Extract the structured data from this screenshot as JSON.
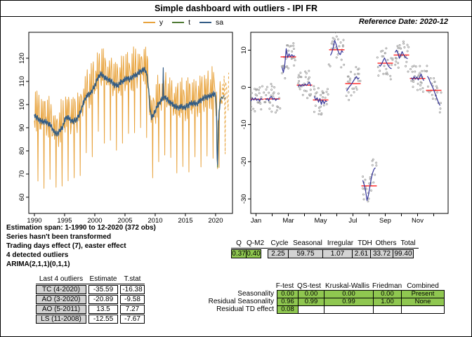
{
  "window": {
    "title": "Simple dashboard with outliers - IPI FR",
    "reference_date": "Reference Date: 2020-12"
  },
  "legend": {
    "items": [
      {
        "label": "y",
        "color": "#E8A33D"
      },
      {
        "label": "t",
        "color": "#4F7A35"
      },
      {
        "label": "sa",
        "color": "#335C85"
      }
    ]
  },
  "diagnostics": {
    "lines": [
      "Estimation span: 1-1990 to 12-2020 (372 obs)",
      "Series hasn't been transformed",
      "Trading days effect (7), easter effect",
      "4 detected outliers",
      "ARIMA(2,1,1)(0,1,1)"
    ]
  },
  "outliers_table": {
    "headers": [
      "Last 4 outliers",
      "Estimate",
      "T.stat"
    ],
    "rows": [
      [
        "TC (4-2020)",
        "-35.59",
        "-16.38"
      ],
      [
        "AO (3-2020)",
        "-20.89",
        "-9.58"
      ],
      [
        "AO (5-2011)",
        "13.5",
        "7.27"
      ],
      [
        "LS (11-2008)",
        "-12.55",
        "-7.67"
      ]
    ],
    "label_bg": "#D3D3D3"
  },
  "quality_table": {
    "q_headers": [
      "Q",
      "Q-M2"
    ],
    "q_values": [
      "0.37",
      "0.40"
    ],
    "stat_headers": [
      "Cycle",
      "Seasonal",
      "Irregular",
      "TDH",
      "Others",
      "Total"
    ],
    "stat_values": [
      "2.25",
      "59.75",
      "1.07",
      "2.61",
      "33.72",
      "99.40"
    ],
    "green": "#8FC750",
    "gray": "#D3D3D3"
  },
  "seasonality_table": {
    "headers": [
      "F-test",
      "QS-test",
      "Kruskal-Wallis",
      "Friedman",
      "Combined"
    ],
    "rows": [
      {
        "label": "Seasonality",
        "values": [
          "0.00",
          "0.00",
          "0.00",
          "0.00",
          "Present"
        ]
      },
      {
        "label": "Residual Seasonality",
        "values": [
          "0.96",
          "0.99",
          "0.99",
          "1.00",
          "None"
        ]
      },
      {
        "label": "Residual TD effect",
        "values": [
          "0.08",
          "",
          "",
          "",
          ""
        ]
      }
    ],
    "green": "#8FC750"
  },
  "chart_data": [
    {
      "type": "line",
      "title": "y / t / sa with forecasts",
      "x_ticks": [
        1990,
        1995,
        2000,
        2005,
        2010,
        2015,
        2020
      ],
      "y_ticks": [
        60,
        70,
        80,
        90,
        100,
        110,
        120
      ],
      "xlim": [
        1989.07,
        2022.8
      ],
      "ylim": [
        53,
        131.2
      ],
      "series": [
        {
          "name": "y",
          "color": "#E8A33D"
        },
        {
          "name": "t",
          "color": "#4F7A35"
        },
        {
          "name": "sa",
          "color": "#335C85"
        }
      ],
      "trend_keypoints": [
        [
          1990.0,
          95.3
        ],
        [
          1990.6,
          93.8
        ],
        [
          1991.2,
          92.6
        ],
        [
          1991.8,
          92.6
        ],
        [
          1992.3,
          91.8
        ],
        [
          1992.8,
          90.6
        ],
        [
          1993.3,
          88.0
        ],
        [
          1993.7,
          87.2
        ],
        [
          1994.2,
          88.6
        ],
        [
          1994.7,
          90.5
        ],
        [
          1995.1,
          93.8
        ],
        [
          1995.4,
          94.6
        ],
        [
          1995.9,
          93.6
        ],
        [
          1996.4,
          92.6
        ],
        [
          1996.9,
          93.4
        ],
        [
          1997.4,
          95.2
        ],
        [
          1997.9,
          99.0
        ],
        [
          1998.4,
          102.6
        ],
        [
          1998.9,
          104.2
        ],
        [
          1999.4,
          105.2
        ],
        [
          1999.9,
          107.6
        ],
        [
          2000.4,
          110.8
        ],
        [
          2000.9,
          113.2
        ],
        [
          2001.3,
          112.6
        ],
        [
          2001.8,
          111.2
        ],
        [
          2002.3,
          110.8
        ],
        [
          2002.8,
          109.8
        ],
        [
          2003.3,
          108.4
        ],
        [
          2003.8,
          108.2
        ],
        [
          2004.3,
          109.6
        ],
        [
          2004.8,
          110.2
        ],
        [
          2005.3,
          111.6
        ],
        [
          2005.8,
          110.8
        ],
        [
          2006.3,
          112.2
        ],
        [
          2006.8,
          112.6
        ],
        [
          2007.3,
          113.8
        ],
        [
          2007.8,
          114.6
        ],
        [
          2008.3,
          115.2
        ],
        [
          2008.6,
          113.4
        ],
        [
          2008.9,
          107.0
        ],
        [
          2009.1,
          99.0
        ],
        [
          2009.35,
          94.8
        ],
        [
          2009.6,
          94.6
        ],
        [
          2009.9,
          96.6
        ],
        [
          2010.3,
          99.2
        ],
        [
          2010.7,
          100.6
        ],
        [
          2011.1,
          102.2
        ],
        [
          2011.5,
          103.4
        ],
        [
          2011.9,
          102.4
        ],
        [
          2012.4,
          101.0
        ],
        [
          2012.9,
          100.0
        ],
        [
          2013.4,
          99.0
        ],
        [
          2013.9,
          98.6
        ],
        [
          2014.4,
          99.2
        ],
        [
          2014.9,
          98.6
        ],
        [
          2015.4,
          99.6
        ],
        [
          2015.9,
          100.4
        ],
        [
          2016.4,
          100.6
        ],
        [
          2016.9,
          100.2
        ],
        [
          2017.4,
          101.6
        ],
        [
          2017.9,
          102.6
        ],
        [
          2018.4,
          103.2
        ],
        [
          2018.9,
          103.4
        ],
        [
          2019.4,
          104.2
        ],
        [
          2019.9,
          104.6
        ],
        [
          2020.05,
          103.0
        ],
        [
          2020.2,
          93.0
        ],
        [
          2020.29,
          67.0
        ],
        [
          2020.45,
          89.0
        ],
        [
          2020.6,
          97.5
        ],
        [
          2020.75,
          101.0
        ],
        [
          2020.92,
          103.0
        ],
        [
          2021.3,
          103.2
        ],
        [
          2021.8,
          102.6
        ],
        [
          2022.2,
          102.8
        ]
      ],
      "seasonal_profile": [
        -3.2,
        -3.2,
        8.2,
        0.6,
        -3.3,
        10.1,
        1.0,
        -26.0,
        6.5,
        8.7,
        2.4,
        -0.8
      ],
      "irregular_pattern": [
        0.8,
        -1.4,
        1.9,
        0.3,
        -2.1,
        1.2,
        2.3,
        -0.7,
        -1.8,
        1.5,
        0.4,
        -2.4,
        2.0,
        -0.2,
        1.1,
        -1.6,
        2.2,
        -1.0,
        0.6,
        -2.2,
        1.7,
        0.1,
        -1.2,
        2.4,
        -1.9,
        0.9,
        1.4,
        -0.5,
        -2.0,
        1.6,
        -0.9,
        2.1,
        -1.3,
        0.5,
        1.8,
        -2.3,
        0.2
      ],
      "sa_events": [
        {
          "x": 2011.33,
          "dy": 12
        }
      ],
      "obs_start": 1990.0,
      "obs_end": 2020.92,
      "forecast_end": 2022.2
    },
    {
      "type": "seasonal-subseries",
      "title": "SI ratios by month",
      "months": [
        "Jan",
        "Feb",
        "Mar",
        "Apr",
        "May",
        "Jun",
        "Jul",
        "Aug",
        "Sep",
        "Oct",
        "Nov",
        "Dec"
      ],
      "shown_labels": [
        "Jan",
        "Mar",
        "May",
        "Jul",
        "Sep",
        "Nov"
      ],
      "y_ticks": [
        10,
        0,
        -10,
        -20,
        -30
      ],
      "ylim": [
        -33.9,
        14.8
      ],
      "means": [
        -3.2,
        -3.1,
        8.2,
        0.6,
        -3.4,
        10.1,
        1.0,
        -26.5,
        6.5,
        8.7,
        2.4,
        -0.8
      ],
      "lines": [
        [
          -3.0,
          -3.6,
          -2.9,
          -3.4,
          -2.8,
          -3.5,
          -3.1,
          -3.7,
          -3.0,
          -3.3
        ],
        [
          -3.4,
          -3.0,
          -3.6,
          -2.7,
          -2.5,
          -3.3,
          -2.9,
          -3.5,
          -3.1,
          -3.2
        ],
        [
          5.4,
          4.0,
          6.2,
          10.4,
          8.0,
          9.0,
          8.2,
          8.8,
          8.3,
          8.6
        ],
        [
          0.2,
          0.7,
          0.3,
          0.8,
          0.4,
          0.9,
          0.5,
          1.0,
          1.4,
          0.3
        ],
        [
          -2.4,
          -3.4,
          -2.8,
          -4.0,
          -3.0,
          -4.6,
          -3.4,
          -4.4,
          -3.6,
          -3.9
        ],
        [
          8.6,
          9.4,
          10.8,
          12.6,
          11.6,
          10.2,
          9.2,
          8.8,
          9.8,
          9.4
        ],
        [
          -1.0,
          -0.4,
          0.2,
          0.6,
          1.2,
          1.8,
          2.4,
          2.9,
          2.2,
          2.6
        ],
        [
          -25.0,
          -26.2,
          -27.8,
          -30.4,
          -29.0,
          -26.8,
          -24.6,
          -23.0,
          -22.0,
          -21.6
        ],
        [
          6.0,
          5.7,
          6.3,
          7.2,
          7.9,
          7.0,
          6.2,
          5.6,
          5.2,
          5.0
        ],
        [
          9.4,
          10.0,
          9.2,
          7.8,
          8.6,
          9.6,
          8.8,
          8.2,
          7.9,
          7.7
        ],
        [
          2.6,
          2.1,
          2.9,
          2.2,
          2.8,
          2.0,
          2.7,
          3.6,
          2.4,
          1.8
        ],
        [
          3.0,
          2.4,
          1.4,
          0.6,
          -0.2,
          -1.2,
          -2.2,
          -3.2,
          -4.2,
          -4.9
        ]
      ],
      "dot_jitter": [
        1.1,
        -1.8,
        0.6,
        2.2,
        -0.9,
        1.6,
        -2.3,
        0.3,
        1.9,
        -1.2,
        2.4,
        -0.4,
        -2.0,
        1.3,
        0.8,
        -1.5,
        2.1,
        -0.6,
        1.0,
        -2.4,
        1.7,
        0.2,
        -1.1,
        2.3,
        -1.7,
        0.5,
        1.4,
        -2.2,
        0.9,
        -0.3,
        1.8
      ],
      "colors": {
        "line": "#333399",
        "mean": "#FF3030",
        "dots": "#9C9C9C"
      }
    }
  ]
}
